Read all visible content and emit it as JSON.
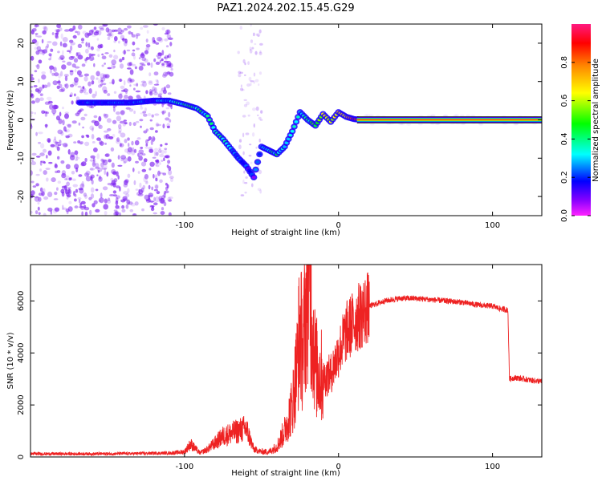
{
  "title": "PAZ1.2024.202.15.45.G29",
  "colors": {
    "snr_line": "#ee2222",
    "spectrogram_scatter": "#7a1cf0",
    "band_ridge": "#ff1e1e",
    "frame": "#000000"
  },
  "colorbar": {
    "label": "Normalized spectral amplitude",
    "ticks": [
      "0.0",
      "0.2",
      "0.4",
      "0.6",
      "0.8"
    ],
    "tick_values": [
      0.0,
      0.2,
      0.4,
      0.6,
      0.8
    ],
    "range": [
      0,
      1
    ],
    "colormap": "rainbow (magenta-blue-cyan-green-yellow-red-pink)"
  },
  "chart_data": [
    {
      "type": "heatmap",
      "panel": "spectrogram",
      "xlabel": "Height of straight line (km)",
      "ylabel": "Frequency (Hz)",
      "xlim": [
        -200,
        132
      ],
      "ylim": [
        -25,
        25
      ],
      "xticks": [
        -100,
        0,
        100
      ],
      "xtick_labels": [
        "-100",
        "0",
        "100"
      ],
      "yticks": [
        20,
        10,
        0,
        -10,
        -20
      ],
      "ytick_labels": [
        "20",
        "10",
        "0",
        "-10",
        "-20"
      ],
      "noise_region_x": [
        -200,
        -108
      ],
      "doppler_track": {
        "x": [
          -168,
          -150,
          -135,
          -120,
          -110,
          -100,
          -92,
          -85,
          -80,
          -75,
          -70,
          -65,
          -60,
          -55,
          -50,
          -45,
          -40,
          -35,
          -30,
          -25,
          -20,
          -15,
          -10,
          -5,
          0,
          5,
          10,
          15,
          40,
          80,
          120,
          132
        ],
        "y": [
          4.5,
          4.5,
          4.5,
          5,
          5,
          4,
          3,
          1,
          -3,
          -5,
          -7.5,
          -10,
          -12,
          -15,
          -7,
          -8,
          -9,
          -7,
          -3,
          2,
          0,
          -1.5,
          1.5,
          -0.5,
          2,
          0.8,
          0.2,
          0,
          0,
          0,
          0,
          0
        ],
        "amplitude": [
          0.2,
          0.2,
          0.2,
          0.2,
          0.3,
          0.4,
          0.4,
          0.35,
          0.35,
          0.35,
          0.3,
          0.25,
          0.2,
          0.15,
          0.3,
          0.35,
          0.4,
          0.3,
          0.3,
          0.3,
          0.4,
          0.5,
          0.6,
          0.6,
          0.7,
          0.7,
          0.8,
          0.95,
          0.95,
          0.95,
          0.95,
          0.95
        ]
      }
    },
    {
      "type": "line",
      "panel": "snr",
      "xlabel": "Height of straight line (km)",
      "ylabel": "SNR (10 * v/v)",
      "xlim": [
        -200,
        132
      ],
      "ylim": [
        0,
        7400
      ],
      "xticks": [
        -100,
        0,
        100
      ],
      "xtick_labels": [
        "-100",
        "0",
        "100"
      ],
      "yticks": [
        0,
        2000,
        4000,
        6000
      ],
      "ytick_labels": [
        "0",
        "2000",
        "4000",
        "6000"
      ],
      "series": [
        {
          "x": [
            -200,
            -150,
            -108,
            -100,
            -96,
            -90,
            -85,
            -80,
            -75,
            -70,
            -65,
            -60,
            -55,
            -50,
            -45,
            -40,
            -35,
            -30,
            -27,
            -25,
            -23,
            -20,
            -18,
            -15,
            -10,
            -5,
            0,
            5,
            10,
            20,
            30,
            40,
            50,
            60,
            70,
            80,
            90,
            100,
            105,
            110,
            111,
            115,
            120,
            125,
            132
          ],
          "y": [
            120,
            120,
            150,
            200,
            500,
            150,
            300,
            550,
            800,
            900,
            1000,
            1100,
            300,
            200,
            200,
            400,
            1000,
            2000,
            3500,
            5000,
            4000,
            7000,
            6000,
            3500,
            3000,
            3200,
            4000,
            4800,
            5200,
            5800,
            6000,
            6100,
            6100,
            6050,
            6000,
            5950,
            5850,
            5800,
            5700,
            5650,
            3000,
            3050,
            3000,
            2950,
            2900
          ]
        }
      ]
    }
  ]
}
